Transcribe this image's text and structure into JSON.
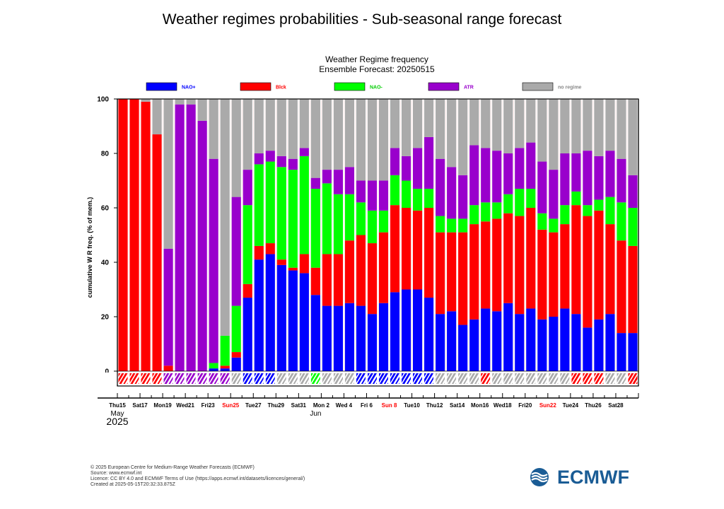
{
  "page_title": "Weather regimes probabilities - Sub-seasonal range forecast",
  "colors": {
    "NAO+": "#0000ff",
    "Blck": "#ff0000",
    "NAO-": "#00ff00",
    "ATR": "#9900cc",
    "no regime": "#aaaaaa"
  },
  "footer": {
    "line1": "© 2025 European Centre for Medium-Range Weather Forecasts (ECMWF)",
    "line2": "Source: www.ecmwf.int",
    "line3": "Licence: CC BY 4.0 and ECMWF Terms of Use (https://apps.ecmwf.int/datasets/licences/general/)",
    "line4": "Created at 2025-05-15T20:32:33.875Z"
  },
  "logo": {
    "text": "ECMWF"
  },
  "chart_data": {
    "type": "bar",
    "stacked": true,
    "title": "Weather Regime frequency",
    "subtitle": "Ensemble Forecast: 20250515",
    "ylabel": "cumulative W R freq. (% of mem.)",
    "xlabel": "",
    "ylim": [
      0,
      100
    ],
    "yticks": [
      0,
      20,
      40,
      60,
      80,
      100
    ],
    "legend_position": "top",
    "legend": [
      {
        "name": "NAO+",
        "color": "#0000ff",
        "text_color": "#0000ff"
      },
      {
        "name": "Blck",
        "color": "#ff0000",
        "text_color": "#ff0000"
      },
      {
        "name": "NAO-",
        "color": "#00ff00",
        "text_color": "#00cc00"
      },
      {
        "name": "ATR",
        "color": "#9900cc",
        "text_color": "#9900cc"
      },
      {
        "name": "no regime",
        "color": "#aaaaaa",
        "text_color": "#888888"
      }
    ],
    "x_tick_labels": [
      {
        "day": 0,
        "label": "Thu15",
        "color": "#000000"
      },
      {
        "day": 2,
        "label": "Sat17",
        "color": "#000000"
      },
      {
        "day": 4,
        "label": "Mon19",
        "color": "#000000"
      },
      {
        "day": 6,
        "label": "Wed21",
        "color": "#000000"
      },
      {
        "day": 8,
        "label": "Fri23",
        "color": "#000000"
      },
      {
        "day": 10,
        "label": "Sun25",
        "color": "#ff0000"
      },
      {
        "day": 12,
        "label": "Tue27",
        "color": "#000000"
      },
      {
        "day": 14,
        "label": "Thu29",
        "color": "#000000"
      },
      {
        "day": 16,
        "label": "Sat31",
        "color": "#000000"
      },
      {
        "day": 18,
        "label": "Mon 2",
        "color": "#000000"
      },
      {
        "day": 20,
        "label": "Wed 4",
        "color": "#000000"
      },
      {
        "day": 22,
        "label": "Fri 6",
        "color": "#000000"
      },
      {
        "day": 24,
        "label": "Sun 8",
        "color": "#ff0000"
      },
      {
        "day": 26,
        "label": "Tue10",
        "color": "#000000"
      },
      {
        "day": 28,
        "label": "Thu12",
        "color": "#000000"
      },
      {
        "day": 30,
        "label": "Sat14",
        "color": "#000000"
      },
      {
        "day": 32,
        "label": "Mon16",
        "color": "#000000"
      },
      {
        "day": 34,
        "label": "Wed18",
        "color": "#000000"
      },
      {
        "day": 36,
        "label": "Fri20",
        "color": "#000000"
      },
      {
        "day": 38,
        "label": "Sun22",
        "color": "#ff0000"
      },
      {
        "day": 40,
        "label": "Tue24",
        "color": "#000000"
      },
      {
        "day": 42,
        "label": "Thu26",
        "color": "#000000"
      },
      {
        "day": 44,
        "label": "Sat28",
        "color": "#000000"
      }
    ],
    "month_labels": [
      {
        "day": 0,
        "label": "May"
      },
      {
        "day": 17.5,
        "label": "Jun"
      }
    ],
    "year_label": "2025",
    "series": [
      {
        "name": "NAO+",
        "values": [
          0,
          0,
          0,
          0,
          0,
          0,
          0,
          0,
          1,
          1,
          5,
          27,
          41,
          43,
          39,
          37,
          36,
          28,
          24,
          24,
          25,
          24,
          21,
          25,
          29,
          30,
          30,
          27,
          21,
          22,
          17,
          19,
          23,
          22,
          25,
          21,
          23,
          19,
          20,
          23,
          21,
          16,
          19,
          21,
          14,
          14
        ]
      },
      {
        "name": "Blck",
        "values": [
          100,
          100,
          99,
          87,
          2,
          0,
          0,
          0,
          0,
          1,
          2,
          5,
          5,
          4,
          2,
          1,
          7,
          10,
          19,
          19,
          23,
          26,
          26,
          26,
          32,
          30,
          29,
          33,
          30,
          29,
          34,
          35,
          32,
          34,
          33,
          36,
          37,
          33,
          31,
          31,
          40,
          41,
          40,
          33,
          34,
          32
        ]
      },
      {
        "name": "NAO-",
        "values": [
          0,
          0,
          0,
          0,
          0,
          0,
          0,
          0,
          2,
          11,
          17,
          29,
          30,
          30,
          34,
          36,
          36,
          29,
          26,
          22,
          17,
          12,
          12,
          8,
          11,
          10,
          8,
          7,
          6,
          5,
          5,
          7,
          7,
          6,
          7,
          10,
          7,
          6,
          5,
          7,
          5,
          4,
          4,
          10,
          14,
          14
        ]
      },
      {
        "name": "ATR",
        "values": [
          0,
          0,
          0,
          0,
          43,
          98,
          98,
          92,
          75,
          0,
          40,
          13,
          4,
          4,
          4,
          4,
          3,
          4,
          5,
          9,
          10,
          8,
          11,
          11,
          10,
          9,
          15,
          19,
          21,
          19,
          16,
          22,
          20,
          19,
          15,
          15,
          17,
          19,
          18,
          19,
          14,
          20,
          16,
          17,
          16,
          12
        ]
      },
      {
        "name": "no regime",
        "values": [
          0,
          0,
          1,
          13,
          55,
          2,
          2,
          8,
          22,
          87,
          36,
          26,
          20,
          19,
          21,
          22,
          18,
          29,
          26,
          26,
          25,
          30,
          30,
          30,
          18,
          21,
          18,
          14,
          22,
          25,
          28,
          17,
          18,
          19,
          20,
          18,
          16,
          23,
          26,
          20,
          20,
          19,
          21,
          19,
          22,
          28
        ]
      }
    ],
    "day_regime": [
      "Blck",
      "Blck",
      "Blck",
      "Blck",
      "ATR",
      "ATR",
      "ATR",
      "ATR",
      "ATR",
      "ATR",
      "no regime",
      "NAO+",
      "NAO+",
      "NAO+",
      "no regime",
      "no regime",
      "no regime",
      "NAO-",
      "no regime",
      "no regime",
      "no regime",
      "NAO+",
      "NAO+",
      "NAO+",
      "NAO+",
      "NAO+",
      "NAO+",
      "NAO+",
      "no regime",
      "no regime",
      "no regime",
      "no regime",
      "Blck",
      "no regime",
      "no regime",
      "no regime",
      "no regime",
      "no regime",
      "no regime",
      "no regime",
      "Blck",
      "Blck",
      "Blck",
      "no regime",
      "no regime",
      "Blck"
    ]
  }
}
